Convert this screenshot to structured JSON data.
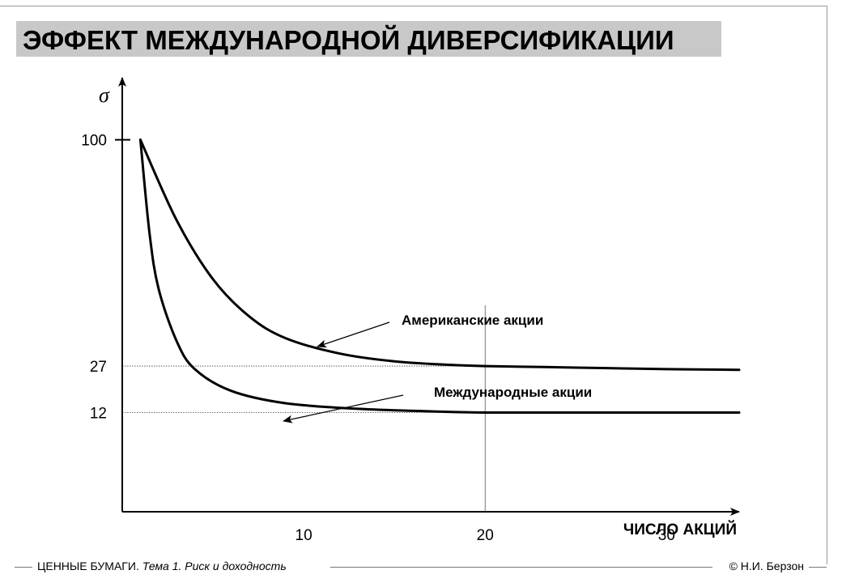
{
  "slide": {
    "title": "ЭФФЕКТ МЕЖДУНАРОДНОЙ ДИВЕРСИФИКАЦИИ"
  },
  "footer": {
    "course": "ЦЕННЫЕ БУМАГИ.",
    "topic": "Тема 1. Риск и доходность",
    "author": "© Н.И. Берзон"
  },
  "chart_data": {
    "type": "line",
    "ylabel": "σ",
    "xlabel": "ЧИСЛО АКЦИЙ",
    "x_ticks": [
      10,
      20,
      30
    ],
    "y_ticks": [
      100,
      27,
      12
    ],
    "xlim": [
      0,
      34
    ],
    "ylim": [
      -20,
      120
    ],
    "reference_x": 20,
    "series": [
      {
        "name": "Американские акции",
        "x": [
          1,
          3,
          5,
          7,
          9,
          12,
          15,
          18,
          20,
          25,
          30,
          34
        ],
        "y": [
          100,
          74,
          55,
          43,
          36,
          31,
          28.5,
          27.4,
          27,
          26.5,
          26,
          25.8
        ]
      },
      {
        "name": "Международные акции",
        "x": [
          1,
          1.5,
          2,
          3,
          4,
          6,
          9,
          13,
          17,
          20,
          25,
          34
        ],
        "y": [
          100,
          70,
          52,
          35,
          26,
          19,
          15,
          13.2,
          12.4,
          12,
          12,
          12
        ]
      }
    ],
    "annotations": [
      {
        "text": "Американские акции",
        "series": 0
      },
      {
        "text": "Международные акции",
        "series": 1
      }
    ]
  }
}
